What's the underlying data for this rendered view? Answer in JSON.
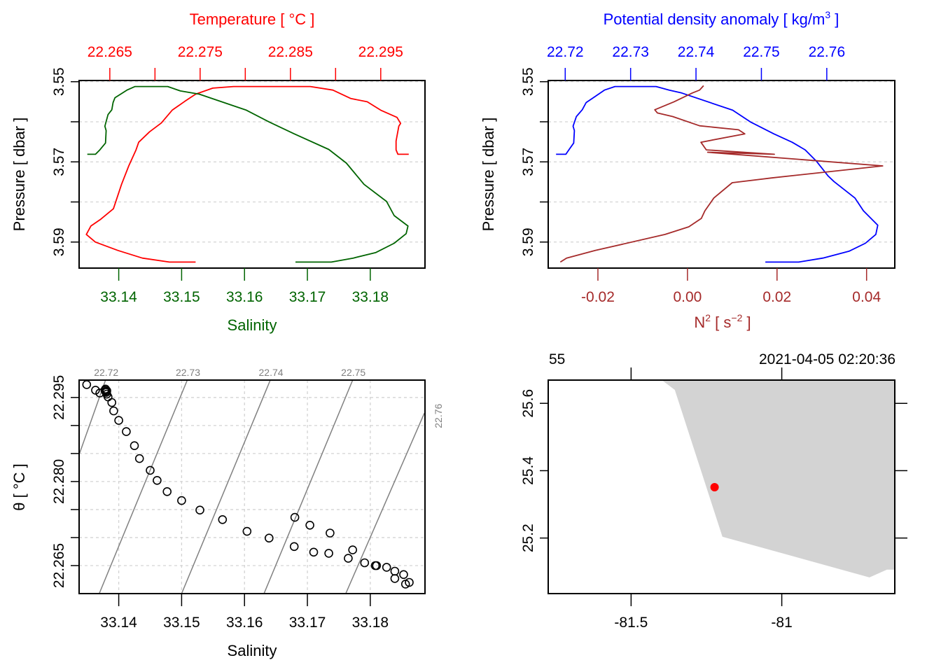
{
  "colors": {
    "temperature": "#ff0000",
    "salinity": "#006400",
    "density": "#0000ff",
    "n2": "#a52a2a",
    "contour": "#808080",
    "contour_label": "#808080",
    "land": "#d3d3d3",
    "station": "#ff0000",
    "axis": "#000000"
  },
  "chart_data": [
    {
      "id": "profile-salinity-temperature",
      "type": "line",
      "title": "",
      "ylabel": "Pressure [ dbar ]",
      "ylim": [
        3.5965,
        3.5497
      ],
      "yticks": [
        3.55,
        3.56,
        3.57,
        3.58,
        3.59
      ],
      "ytick_labels": [
        "3.55",
        "",
        "3.57",
        "",
        "3.59"
      ],
      "grid": true,
      "axes": {
        "top": {
          "label": "Temperature [ °C ]",
          "ticks": [
            22.265,
            22.27,
            22.275,
            22.28,
            22.285,
            22.29,
            22.295
          ],
          "tick_labels": [
            "22.265",
            "",
            "22.275",
            "",
            "22.285",
            "",
            "22.295"
          ],
          "lim": [
            22.2616,
            22.2999
          ]
        },
        "bottom": {
          "label": "Salinity",
          "ticks": [
            33.14,
            33.15,
            33.16,
            33.17,
            33.18
          ],
          "tick_labels": [
            "33.14",
            "33.15",
            "33.16",
            "33.17",
            "33.18"
          ],
          "lim": [
            33.1337,
            33.1887
          ]
        }
      },
      "series": [
        {
          "name": "Temperature",
          "axis": "top",
          "x": [
            22.2745,
            22.2716,
            22.2686,
            22.2659,
            22.2634,
            22.2624,
            22.2629,
            22.264,
            22.2654,
            22.2663,
            22.2671,
            22.2679,
            22.2682,
            22.2694,
            22.2707,
            22.2719,
            22.2733,
            22.2745,
            22.2764,
            22.2787,
            22.2872,
            22.2897,
            22.2917,
            22.2935,
            22.295,
            22.2968,
            22.2972,
            22.297,
            22.2967,
            22.2967,
            22.2969,
            22.2981
          ],
          "pressure": [
            3.595,
            3.595,
            3.594,
            3.5921,
            3.59,
            3.5881,
            3.586,
            3.5843,
            3.5817,
            3.5756,
            3.571,
            3.567,
            3.5651,
            3.5625,
            3.5603,
            3.5571,
            3.5549,
            3.5531,
            3.5516,
            3.5512,
            3.5512,
            3.5521,
            3.5542,
            3.555,
            3.5571,
            3.5589,
            3.5604,
            3.5611,
            3.5648,
            3.567,
            3.5681,
            3.5681
          ]
        },
        {
          "name": "Salinity",
          "axis": "bottom",
          "x": [
            33.135,
            33.1363,
            33.137,
            33.1379,
            33.138,
            33.1378,
            33.1383,
            33.1389,
            33.1391,
            33.1394,
            33.1403,
            33.1413,
            33.1426,
            33.1478,
            33.1498,
            33.1528,
            33.1584,
            33.1603,
            33.164,
            33.1679,
            33.1734,
            33.1762,
            33.179,
            33.1826,
            33.1838,
            33.186,
            33.1857,
            33.1838,
            33.1809,
            33.1773,
            33.1738,
            33.1681
          ],
          "pressure": [
            3.5681,
            3.5681,
            3.567,
            3.5653,
            3.5622,
            3.5611,
            3.5582,
            3.557,
            3.5552,
            3.554,
            3.5531,
            3.5521,
            3.5512,
            3.5512,
            3.5523,
            3.5531,
            3.5561,
            3.5571,
            3.5601,
            3.563,
            3.5669,
            3.5703,
            3.5756,
            3.5799,
            3.5834,
            3.586,
            3.5879,
            3.5903,
            3.5926,
            3.594,
            3.595,
            3.595
          ]
        }
      ]
    },
    {
      "id": "profile-density-n2",
      "type": "line",
      "title": "",
      "ylabel": "Pressure [ dbar ]",
      "ylim": [
        3.5965,
        3.5497
      ],
      "yticks": [
        3.55,
        3.56,
        3.57,
        3.58,
        3.59
      ],
      "ytick_labels": [
        "3.55",
        "",
        "3.57",
        "",
        "3.59"
      ],
      "grid": true,
      "axes": {
        "top": {
          "label": "Potential density anomaly [ kg/m³ ]",
          "label_main": "Potential density anomaly [ kg/m",
          "label_sup": "3",
          "label_end": " ]",
          "ticks": [
            22.72,
            22.73,
            22.74,
            22.75,
            22.76
          ],
          "tick_labels": [
            "22.72",
            "22.73",
            "22.74",
            "22.75",
            "22.76"
          ],
          "lim": [
            22.7174,
            22.7704
          ]
        },
        "bottom": {
          "label": "N² [ s⁻² ]",
          "label_main": "N",
          "label_sup": "2",
          "label_mid": " [ s",
          "label_sup2": "−2",
          "label_end": " ]",
          "ticks": [
            -0.02,
            0.0,
            0.02,
            0.04
          ],
          "tick_labels": [
            "-0.02",
            "0.00",
            "0.02",
            "0.04"
          ],
          "lim": [
            -0.0311,
            0.0463
          ]
        }
      },
      "series": [
        {
          "name": "Potential density anomaly",
          "axis": "top",
          "x": [
            22.7186,
            22.7201,
            22.7206,
            22.7213,
            22.7214,
            22.7212,
            22.7217,
            22.7226,
            22.7232,
            22.7243,
            22.726,
            22.7276,
            22.7339,
            22.7359,
            22.7378,
            22.7456,
            22.7484,
            22.7519,
            22.7547,
            22.7567,
            22.7584,
            22.7602,
            22.7611,
            22.7643,
            22.7656,
            22.7678,
            22.7675,
            22.7659,
            22.7634,
            22.7594,
            22.7557,
            22.7506
          ],
          "pressure": [
            3.5681,
            3.5681,
            3.5669,
            3.5653,
            3.5622,
            3.5611,
            3.5587,
            3.557,
            3.5552,
            3.554,
            3.5521,
            3.5512,
            3.5512,
            3.5521,
            3.5528,
            3.5571,
            3.5601,
            3.563,
            3.5651,
            3.567,
            3.5698,
            3.5735,
            3.5749,
            3.579,
            3.5822,
            3.5858,
            3.5881,
            3.5903,
            3.5923,
            3.594,
            3.595,
            3.595
          ]
        },
        {
          "name": "N2",
          "axis": "bottom",
          "x": [
            0.0036,
            0.0027,
            0.0011,
            -0.003,
            -0.0073,
            -0.0067,
            -0.0033,
            0.0027,
            0.0114,
            0.0128,
            0.003,
            0.0042,
            0.0194,
            0.0045,
            0.0436,
            0.0188,
            0.01,
            0.0059,
            0.0039,
            0.0031,
            0.0003,
            -0.005,
            -0.0206,
            -0.027,
            -0.0284
          ],
          "pressure": [
            3.551,
            3.5521,
            3.5528,
            3.555,
            3.557,
            3.5578,
            3.5587,
            3.561,
            3.562,
            3.563,
            3.5651,
            3.567,
            3.5681,
            3.5676,
            3.571,
            3.574,
            3.5752,
            3.579,
            3.5822,
            3.5841,
            3.5862,
            3.5881,
            3.5921,
            3.594,
            3.595
          ]
        }
      ]
    },
    {
      "id": "ts-diagram",
      "type": "scatter",
      "title": "",
      "xlabel": "Salinity",
      "ylabel": "θ [ °C ]",
      "xlim": [
        33.1337,
        33.1887
      ],
      "ylim": [
        22.26,
        22.2981
      ],
      "xticks": [
        33.14,
        33.15,
        33.16,
        33.17,
        33.18
      ],
      "xtick_labels": [
        "33.14",
        "33.15",
        "33.16",
        "33.17",
        "33.18"
      ],
      "yticks": [
        22.265,
        22.27,
        22.275,
        22.28,
        22.285,
        22.29,
        22.295
      ],
      "ytick_labels": [
        "22.265",
        "",
        "",
        "22.280",
        "",
        "",
        "22.295"
      ],
      "grid": true,
      "isopycnals": [
        {
          "label": "22.72",
          "p1": [
            33.1337,
            22.2848
          ],
          "p2": [
            33.1379,
            22.2981
          ]
        },
        {
          "label": "22.73",
          "p1": [
            33.1369,
            22.26
          ],
          "p2": [
            33.1509,
            22.2981
          ]
        },
        {
          "label": "22.74",
          "p1": [
            33.15,
            22.26
          ],
          "p2": [
            33.1641,
            22.2981
          ]
        },
        {
          "label": "22.75",
          "p1": [
            33.1631,
            22.26
          ],
          "p2": [
            33.1772,
            22.2981
          ]
        },
        {
          "label": "22.76",
          "p1": [
            33.1761,
            22.26
          ],
          "p2": [
            33.1886,
            22.2922
          ]
        }
      ],
      "points": {
        "salinity": [
          33.1349,
          33.1363,
          33.137,
          33.1378,
          33.1379,
          33.138,
          33.1381,
          33.1383,
          33.1379,
          33.1381,
          33.1389,
          33.1392,
          33.14,
          33.1412,
          33.1425,
          33.1433,
          33.145,
          33.1461,
          33.1477,
          33.15,
          33.1529,
          33.1565,
          33.1604,
          33.1639,
          33.168,
          33.1704,
          33.1736,
          33.1679,
          33.171,
          33.1734,
          33.1765,
          33.1772,
          33.1791,
          33.1808,
          33.181,
          33.1826,
          33.1839,
          33.1839,
          33.1853,
          33.1856,
          33.1862
        ],
        "theta": [
          22.2973,
          22.2963,
          22.2958,
          22.2963,
          22.2961,
          22.2959,
          22.2956,
          22.2951,
          22.2965,
          22.2962,
          22.2941,
          22.2926,
          22.2909,
          22.2889,
          22.2864,
          22.2841,
          22.282,
          22.2802,
          22.2782,
          22.2766,
          22.2749,
          22.2732,
          22.2711,
          22.2699,
          22.2736,
          22.2722,
          22.2708,
          22.2684,
          22.2674,
          22.2672,
          22.2663,
          22.2678,
          22.2655,
          22.265,
          22.265,
          22.2647,
          22.264,
          22.2627,
          22.2634,
          22.2617,
          22.262
        ]
      }
    },
    {
      "id": "station-map",
      "type": "scatter",
      "title": "",
      "header_left": "55",
      "header_right": "2021-04-05 02:20:36",
      "xlim": [
        -81.775,
        -80.625
      ],
      "ylim": [
        25.035,
        25.669
      ],
      "xticks": [
        -81.5,
        -81.0
      ],
      "xtick_labels": [
        "-81.5",
        "-81"
      ],
      "yticks": [
        25.2,
        25.4,
        25.6
      ],
      "ytick_labels": [
        "25.2",
        "25.4",
        "25.6"
      ],
      "land_polygon": [
        [
          -81.398,
          25.669
        ],
        [
          -81.355,
          25.64
        ],
        [
          -81.197,
          25.204
        ],
        [
          -80.709,
          25.083
        ],
        [
          -80.651,
          25.106
        ],
        [
          -80.625,
          25.106
        ],
        [
          -80.625,
          25.669
        ]
      ],
      "station": {
        "lon": -81.223,
        "lat": 25.351
      }
    }
  ]
}
